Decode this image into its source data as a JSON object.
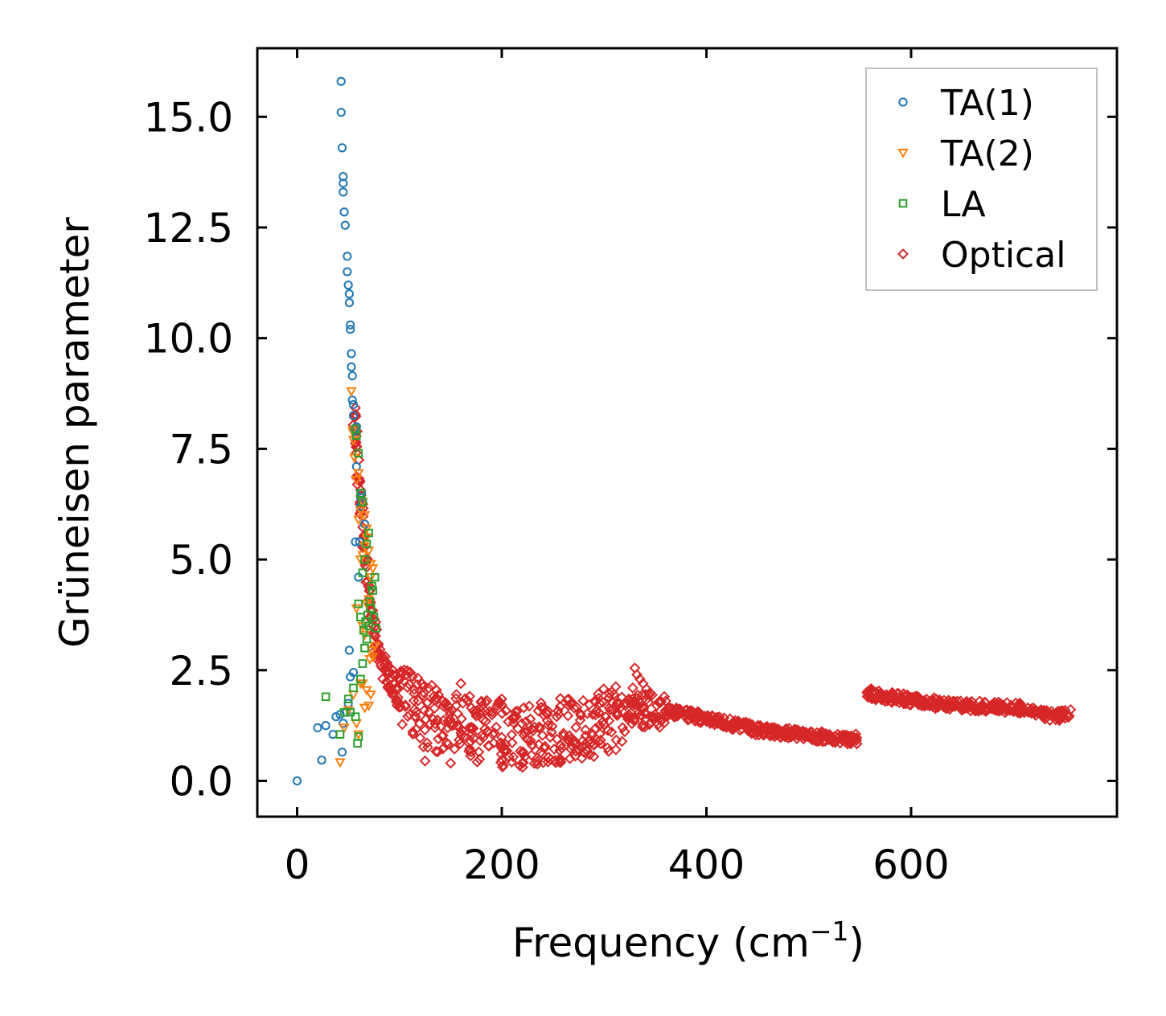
{
  "chart_data": {
    "type": "scatter",
    "title": "",
    "xlabel": "Frequency (cm",
    "xlabel_superscript": "−1",
    "xlabel_suffix": ")",
    "ylabel": "Grüneisen parameter",
    "xlim": [
      -38,
      800
    ],
    "ylim": [
      -0.78,
      16.55
    ],
    "xticks": [
      0,
      200,
      400,
      600
    ],
    "xtick_labels": [
      "0",
      "200",
      "400",
      "600"
    ],
    "yticks": [
      0.0,
      2.5,
      5.0,
      7.5,
      10.0,
      12.5,
      15.0
    ],
    "ytick_labels": [
      "0.0",
      "2.5",
      "5.0",
      "7.5",
      "10.0",
      "12.5",
      "15.0"
    ],
    "legend_position": "top-right",
    "series": [
      {
        "name": "TA(1)",
        "marker": "circle",
        "color": "#1f77b4",
        "points": [
          [
            0,
            0
          ],
          [
            20,
            1.2
          ],
          [
            24,
            0.47
          ],
          [
            28,
            1.25
          ],
          [
            35,
            1.05
          ],
          [
            38,
            1.45
          ],
          [
            42,
            1.5
          ],
          [
            44,
            0.65
          ],
          [
            45,
            1.3
          ],
          [
            48,
            1.55
          ],
          [
            50,
            1.75
          ],
          [
            51,
            2.95
          ],
          [
            52,
            2.35
          ],
          [
            55,
            2.45
          ],
          [
            57,
            5.4
          ],
          [
            60,
            4.6
          ],
          [
            61,
            5.4
          ],
          [
            62,
            6.2
          ],
          [
            62,
            6.4
          ],
          [
            63,
            6.5
          ],
          [
            58,
            7.1
          ],
          [
            56,
            7.9
          ],
          [
            55,
            8.25
          ],
          [
            55,
            8.5
          ],
          [
            54,
            8.6
          ],
          [
            54,
            9.15
          ],
          [
            53,
            9.35
          ],
          [
            53,
            9.65
          ],
          [
            52,
            10.2
          ],
          [
            52,
            10.3
          ],
          [
            51,
            10.8
          ],
          [
            51,
            11.0
          ],
          [
            50,
            11.2
          ],
          [
            49,
            11.5
          ],
          [
            49,
            11.85
          ],
          [
            47,
            12.55
          ],
          [
            46,
            12.85
          ],
          [
            45,
            13.3
          ],
          [
            45,
            13.5
          ],
          [
            45,
            13.65
          ],
          [
            44,
            14.3
          ],
          [
            43,
            15.1
          ],
          [
            43,
            15.8
          ],
          [
            64,
            6.3
          ],
          [
            66,
            5.8
          ],
          [
            58,
            8.0
          ]
        ]
      },
      {
        "name": "TA(2)",
        "marker": "triangle-down",
        "color": "#ff7f0e",
        "points": [
          [
            42,
            0.42
          ],
          [
            46,
            1.2
          ],
          [
            50,
            1.6
          ],
          [
            55,
            1.95
          ],
          [
            58,
            1.3
          ],
          [
            60,
            1.05
          ],
          [
            62,
            2.2
          ],
          [
            64,
            2.2
          ],
          [
            66,
            1.65
          ],
          [
            68,
            2.05
          ],
          [
            70,
            1.7
          ],
          [
            72,
            1.95
          ],
          [
            74,
            2.8
          ],
          [
            76,
            3.05
          ],
          [
            64,
            3.5
          ],
          [
            66,
            3.3
          ],
          [
            68,
            4.0
          ],
          [
            70,
            4.1
          ],
          [
            72,
            4.6
          ],
          [
            74,
            4.8
          ],
          [
            62,
            5.0
          ],
          [
            64,
            5.1
          ],
          [
            66,
            5.3
          ],
          [
            68,
            5.5
          ],
          [
            70,
            5.2
          ],
          [
            72,
            4.9
          ],
          [
            60,
            5.9
          ],
          [
            62,
            6.1
          ],
          [
            64,
            6.3
          ],
          [
            66,
            6.0
          ],
          [
            68,
            5.7
          ],
          [
            58,
            6.8
          ],
          [
            60,
            6.95
          ],
          [
            56,
            7.3
          ],
          [
            55,
            7.7
          ],
          [
            54,
            7.9
          ],
          [
            53,
            8.8
          ],
          [
            71,
            2.75
          ],
          [
            73,
            2.95
          ],
          [
            58,
            3.9
          ]
        ]
      },
      {
        "name": "LA",
        "marker": "square",
        "color": "#2ca02c",
        "points": [
          [
            28,
            1.9
          ],
          [
            42,
            1.05
          ],
          [
            46,
            1.55
          ],
          [
            50,
            1.85
          ],
          [
            52,
            1.55
          ],
          [
            55,
            2.1
          ],
          [
            57,
            1.45
          ],
          [
            59,
            0.85
          ],
          [
            60,
            1.0
          ],
          [
            62,
            2.3
          ],
          [
            64,
            2.65
          ],
          [
            66,
            3.0
          ],
          [
            68,
            3.2
          ],
          [
            70,
            3.5
          ],
          [
            72,
            3.9
          ],
          [
            74,
            4.3
          ],
          [
            76,
            4.6
          ],
          [
            65,
            3.4
          ],
          [
            67,
            3.6
          ],
          [
            69,
            3.75
          ],
          [
            71,
            4.05
          ],
          [
            73,
            4.4
          ],
          [
            60,
            4.0
          ],
          [
            62,
            3.7
          ],
          [
            64,
            4.7
          ],
          [
            66,
            5.0
          ],
          [
            68,
            5.35
          ],
          [
            70,
            5.6
          ],
          [
            62,
            6.5
          ],
          [
            64,
            6.3
          ],
          [
            60,
            7.4
          ],
          [
            58,
            7.8
          ],
          [
            57,
            7.95
          ],
          [
            75,
            3.7
          ],
          [
            77,
            3.45
          ]
        ]
      },
      {
        "name": "Optical",
        "marker": "diamond",
        "color": "#d62728",
        "points": []
      }
    ],
    "optical_cloud": [
      [
        55,
        8.8
      ],
      [
        57,
        7.8
      ],
      [
        58,
        7.5
      ],
      [
        60,
        6.9
      ],
      [
        62,
        6.4
      ],
      [
        64,
        5.9
      ],
      [
        66,
        5.3
      ],
      [
        68,
        4.8
      ],
      [
        70,
        4.3
      ],
      [
        72,
        3.9
      ],
      [
        74,
        3.6
      ],
      [
        76,
        3.3
      ],
      [
        78,
        3.1
      ],
      [
        80,
        2.95
      ],
      [
        82,
        2.8
      ],
      [
        85,
        2.6
      ],
      [
        88,
        2.4
      ],
      [
        90,
        2.3
      ],
      [
        92,
        2.2
      ],
      [
        95,
        2.1
      ],
      [
        98,
        2.0
      ],
      [
        100,
        1.95
      ],
      [
        105,
        1.85
      ],
      [
        110,
        1.75
      ],
      [
        115,
        1.7
      ],
      [
        120,
        1.6
      ],
      [
        125,
        1.5
      ],
      [
        130,
        1.45
      ],
      [
        135,
        1.4
      ],
      [
        140,
        1.35
      ],
      [
        145,
        1.35
      ],
      [
        150,
        1.3
      ],
      [
        160,
        1.25
      ],
      [
        170,
        1.2
      ],
      [
        180,
        1.15
      ],
      [
        190,
        1.1
      ],
      [
        200,
        1.05
      ],
      [
        210,
        1.0
      ],
      [
        220,
        0.95
      ],
      [
        230,
        1.0
      ],
      [
        240,
        1.05
      ],
      [
        250,
        1.1
      ],
      [
        260,
        1.15
      ],
      [
        270,
        1.2
      ],
      [
        280,
        1.25
      ],
      [
        290,
        1.3
      ],
      [
        300,
        1.35
      ],
      [
        310,
        1.4
      ],
      [
        320,
        1.5
      ],
      [
        330,
        1.6
      ],
      [
        340,
        1.65
      ],
      [
        350,
        1.65
      ],
      [
        360,
        1.6
      ],
      [
        370,
        1.55
      ],
      [
        380,
        1.5
      ],
      [
        390,
        1.45
      ],
      [
        400,
        1.4
      ],
      [
        410,
        1.35
      ],
      [
        420,
        1.3
      ],
      [
        430,
        1.25
      ],
      [
        440,
        1.2
      ],
      [
        450,
        1.15
      ],
      [
        460,
        1.12
      ],
      [
        470,
        1.1
      ],
      [
        480,
        1.07
      ],
      [
        490,
        1.05
      ],
      [
        500,
        1.03
      ],
      [
        510,
        1.0
      ],
      [
        520,
        0.98
      ],
      [
        530,
        0.96
      ],
      [
        540,
        0.95
      ],
      [
        550,
        0.94
      ],
      [
        555,
        2.0
      ],
      [
        565,
        1.95
      ],
      [
        575,
        1.9
      ],
      [
        585,
        1.88
      ],
      [
        595,
        1.85
      ],
      [
        605,
        1.8
      ],
      [
        615,
        1.78
      ],
      [
        625,
        1.75
      ],
      [
        635,
        1.73
      ],
      [
        645,
        1.71
      ],
      [
        655,
        1.7
      ],
      [
        665,
        1.69
      ],
      [
        675,
        1.68
      ],
      [
        685,
        1.66
      ],
      [
        695,
        1.66
      ],
      [
        705,
        1.65
      ],
      [
        715,
        1.6
      ],
      [
        725,
        1.52
      ],
      [
        735,
        1.48
      ],
      [
        745,
        1.47
      ],
      [
        755,
        1.5
      ]
    ]
  }
}
